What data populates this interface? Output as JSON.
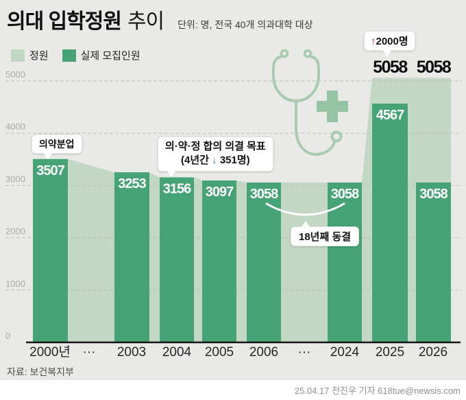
{
  "header": {
    "title_main": "의대 입학정원",
    "title_sub": "추이",
    "unit_note": "단위: 명, 전국 40개 의과대학 대상"
  },
  "legend": [
    {
      "key": "quota",
      "label": "정원"
    },
    {
      "key": "actual",
      "label": "실제 모집인원"
    }
  ],
  "chart_data": {
    "type": "bar",
    "title": "의대 입학정원 추이",
    "unit": "명",
    "categories": [
      "2000년",
      "2003",
      "2004",
      "2005",
      "2006",
      "2024",
      "2025",
      "2026"
    ],
    "x_axis_labels": [
      "2000년",
      "···",
      "2003",
      "2004",
      "2005",
      "2006",
      "···",
      "2024",
      "2025",
      "2026"
    ],
    "series": [
      {
        "name": "정원",
        "values": [
          3507,
          3253,
          3156,
          3097,
          3058,
          3058,
          5058,
          5058
        ]
      },
      {
        "name": "실제 모집인원",
        "values": [
          3507,
          3253,
          3156,
          3097,
          3058,
          3058,
          4567,
          3058
        ]
      }
    ],
    "quota_labels_above": [
      "5058",
      "5058"
    ],
    "ylim": [
      0,
      5000
    ],
    "yticks": [
      0,
      1000,
      2000,
      3000,
      4000,
      5000
    ],
    "grid": "dashed-horizontal",
    "legend_position": "top-left"
  },
  "annotations": {
    "drug_separation": "의약분업",
    "agreement_line1": "의·약·정 합의 의결 목표",
    "agreement_line2_pre": "(4년간",
    "agreement_arrow": "↓",
    "agreement_line2_post": "351명)",
    "freeze": "18년째 동결",
    "increase_arrow": "↑",
    "increase_text": "2000명"
  },
  "footer": {
    "source": "자료: 보건복지부",
    "credit": "25.04.17 전진우 기자 618tue@newsis.com"
  },
  "colors": {
    "background": "#e9e9e7",
    "quota_green": "#c3d8c4",
    "actual_green": "#46a376",
    "grid_gray": "#bcbcb9",
    "tick_gray": "#a9a9a6",
    "axis_black": "#161616",
    "accent_red": "#c9291f",
    "accent_blue": "#2a7ac2",
    "stethoscope_green": "#a7cbae",
    "plus_green": "#96c3a2"
  }
}
